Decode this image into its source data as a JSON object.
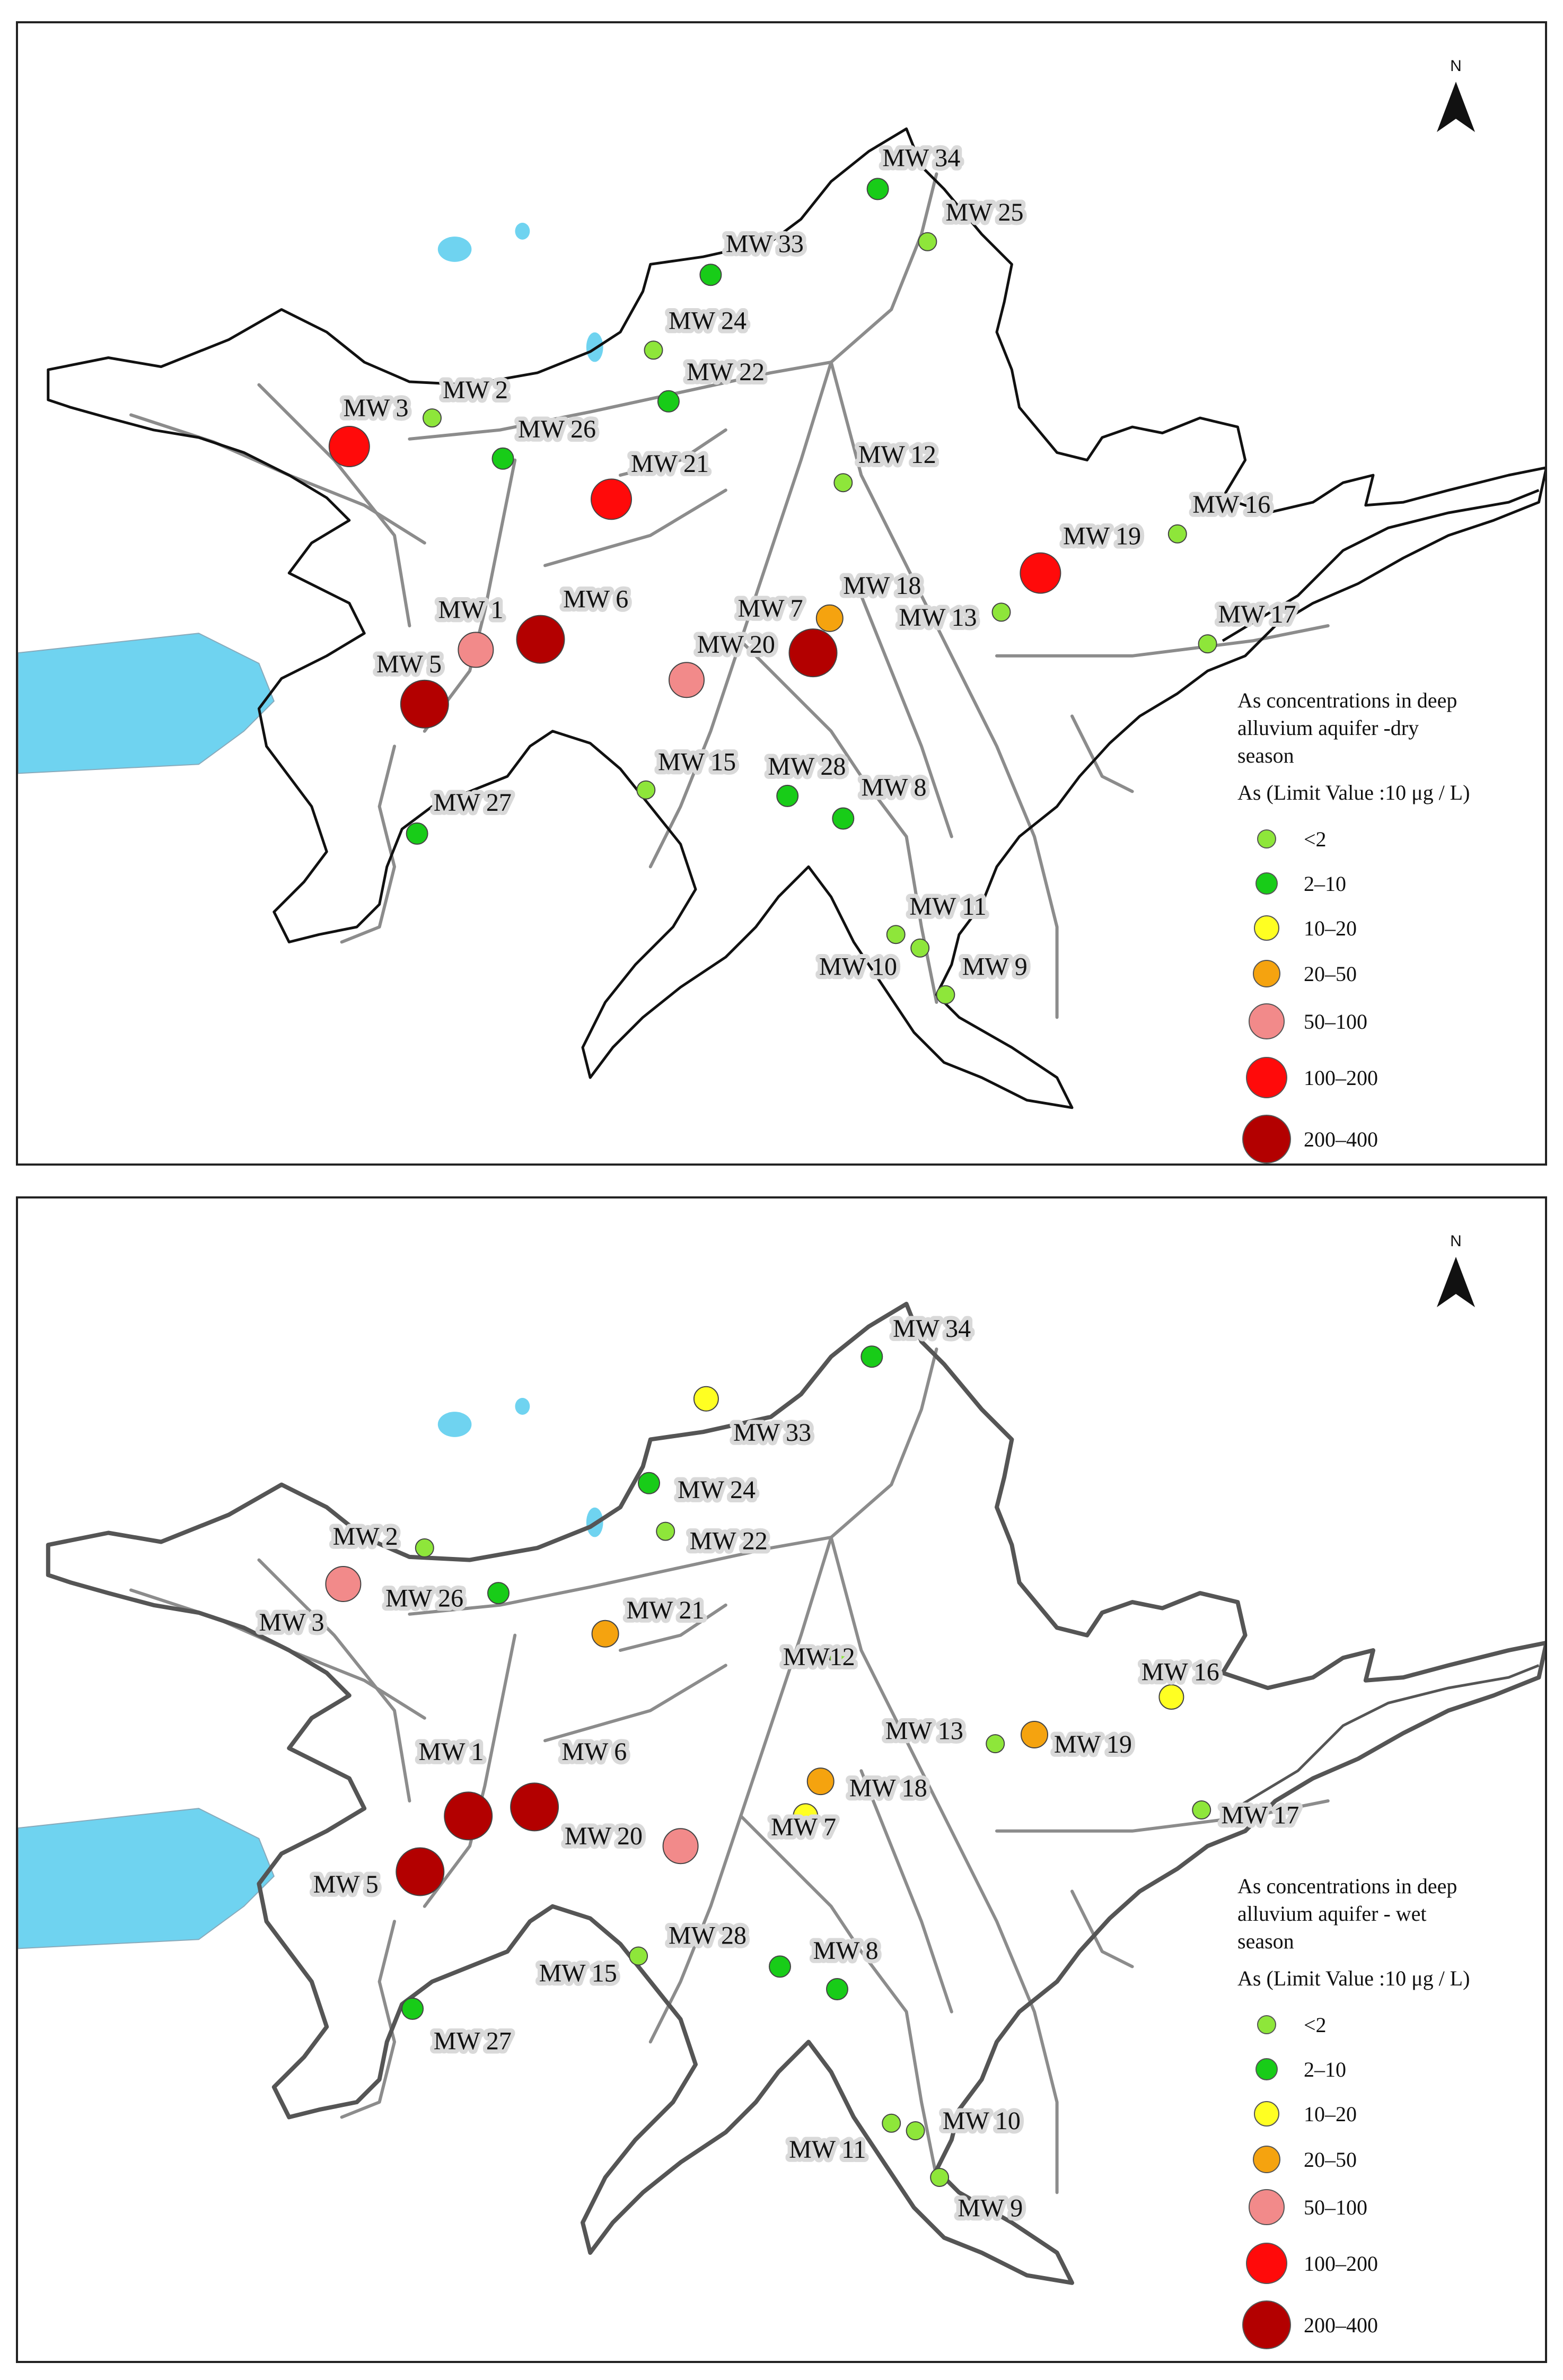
{
  "classes": [
    {
      "label": "<2",
      "color": "#8ee63a"
    },
    {
      "label": "2–10",
      "color": "#18cc18"
    },
    {
      "label": "10–20",
      "color": "#ffff22"
    },
    {
      "label": "20–50",
      "color": "#f5a30f"
    },
    {
      "label": "50–100",
      "color": "#f28a8a"
    },
    {
      "label": "100–200",
      "color": "#ff0a0a"
    },
    {
      "label": "200–400",
      "color": "#b30000"
    }
  ],
  "north_label": "N",
  "panels": [
    {
      "id": "dry",
      "legend_title": [
        "As concentrations in deep",
        "alluvium aquifer -dry",
        "season"
      ],
      "legend_subtitle": "As (Limit Value :10 μg / L)",
      "wells": [
        {
          "label": "MW 34",
          "class": 1
        },
        {
          "label": "MW 25",
          "class": 0
        },
        {
          "label": "MW 33",
          "class": 1
        },
        {
          "label": "MW 24",
          "class": 0
        },
        {
          "label": "MW 22",
          "class": 1
        },
        {
          "label": "MW 2",
          "class": 0
        },
        {
          "label": "MW 3",
          "class": 5
        },
        {
          "label": "MW 26",
          "class": 1
        },
        {
          "label": "MW 21",
          "class": 5
        },
        {
          "label": "MW 12",
          "class": 0
        },
        {
          "label": "MW 16",
          "class": 0
        },
        {
          "label": "MW 19",
          "class": 5
        },
        {
          "label": "MW 18",
          "class": 6
        },
        {
          "label": "MW 7",
          "class": 3
        },
        {
          "label": "MW 13",
          "class": 0
        },
        {
          "label": "MW 17",
          "class": 0
        },
        {
          "label": "MW 1",
          "class": 4
        },
        {
          "label": "MW 6",
          "class": 6
        },
        {
          "label": "MW 20",
          "class": 4
        },
        {
          "label": "MW 5",
          "class": 6
        },
        {
          "label": "MW 15",
          "class": 0
        },
        {
          "label": "MW 28",
          "class": 1
        },
        {
          "label": "MW 8",
          "class": 1
        },
        {
          "label": "MW 27",
          "class": 1
        },
        {
          "label": "MW 11",
          "class": 0
        },
        {
          "label": "MW 10",
          "class": 0
        },
        {
          "label": "MW 9",
          "class": 0
        }
      ]
    },
    {
      "id": "wet",
      "legend_title": [
        "As concentrations in deep",
        "alluvium aquifer - wet",
        "season"
      ],
      "legend_subtitle": "As (Limit Value :10 μg / L)",
      "wells": [
        {
          "label": "MW 34",
          "class": 1
        },
        {
          "label": "MW 33",
          "class": 2
        },
        {
          "label": "MW 24",
          "class": 1
        },
        {
          "label": "MW 22",
          "class": 0
        },
        {
          "label": "MW 2",
          "class": 0
        },
        {
          "label": "MW 3",
          "class": 4
        },
        {
          "label": "MW 26",
          "class": 1
        },
        {
          "label": "MW 21",
          "class": 3
        },
        {
          "label": "MW12",
          "class": 0
        },
        {
          "label": "MW 16",
          "class": 2
        },
        {
          "label": "MW 19",
          "class": 3
        },
        {
          "label": "MW 13",
          "class": 0
        },
        {
          "label": "MW 18",
          "class": 3
        },
        {
          "label": "MW 7",
          "class": 2
        },
        {
          "label": "MW 17",
          "class": 0
        },
        {
          "label": "MW 1",
          "class": 6
        },
        {
          "label": "MW 6",
          "class": 6
        },
        {
          "label": "MW 20",
          "class": 4
        },
        {
          "label": "MW 5",
          "class": 6
        },
        {
          "label": "MW 28",
          "class": 0
        },
        {
          "label": "MW 15",
          "class": 1
        },
        {
          "label": "MW 8",
          "class": 1
        },
        {
          "label": "MW 27",
          "class": 1
        },
        {
          "label": "MW 11",
          "class": 0
        },
        {
          "label": "MW 10",
          "class": 0
        },
        {
          "label": "MW 9",
          "class": 0
        }
      ]
    }
  ]
}
